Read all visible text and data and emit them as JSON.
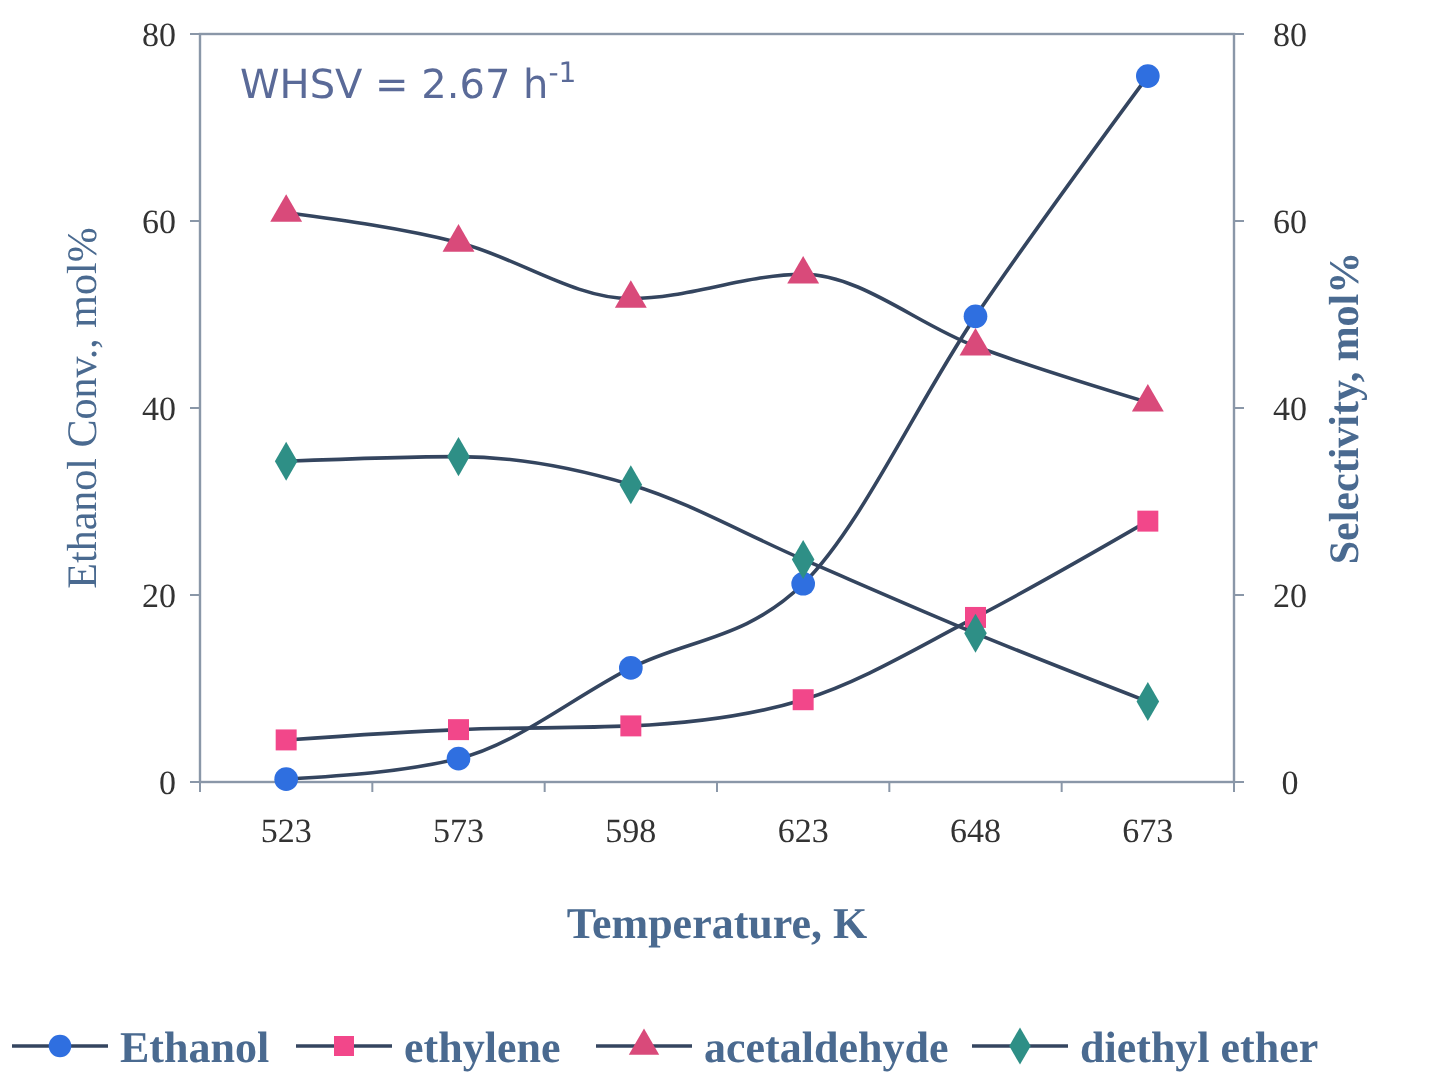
{
  "chart_data": {
    "type": "line",
    "xlabel": "Temperature, K",
    "ylabel": "Ethanol Conv., mol%",
    "y2label": "Selectivity, mol%",
    "annotations": [
      "WHSV = 2.67 h$^{-1}$"
    ],
    "categories": [
      "523",
      "573",
      "598",
      "623",
      "648",
      "673"
    ],
    "ylim": [
      0,
      80
    ],
    "yticks": [
      0,
      20,
      40,
      60,
      80
    ],
    "y2lim": [
      0,
      80
    ],
    "y2ticks": [
      0,
      20,
      40,
      60,
      80
    ],
    "grid": false,
    "legend": "bottom",
    "series": [
      {
        "name": "Ethanol",
        "color": "#2f6fe0",
        "marker": "circle",
        "values": [
          0.3,
          2.5,
          12.2,
          21.2,
          49.8,
          75.5
        ]
      },
      {
        "name": "ethylene",
        "color": "#f2478a",
        "marker": "square",
        "values": [
          4.5,
          5.6,
          6,
          8.8,
          17.6,
          27.9
        ]
      },
      {
        "name": "acetaldehyde",
        "color": "#d94a7a",
        "marker": "triangle",
        "values": [
          60.9,
          57.7,
          51.7,
          54.3,
          46.6,
          40.6
        ]
      },
      {
        "name": "diethyl ether",
        "color": "#2e8f86",
        "marker": "diamond",
        "values": [
          34.3,
          34.8,
          31.8,
          23.8,
          15.9,
          8.6
        ]
      }
    ]
  }
}
